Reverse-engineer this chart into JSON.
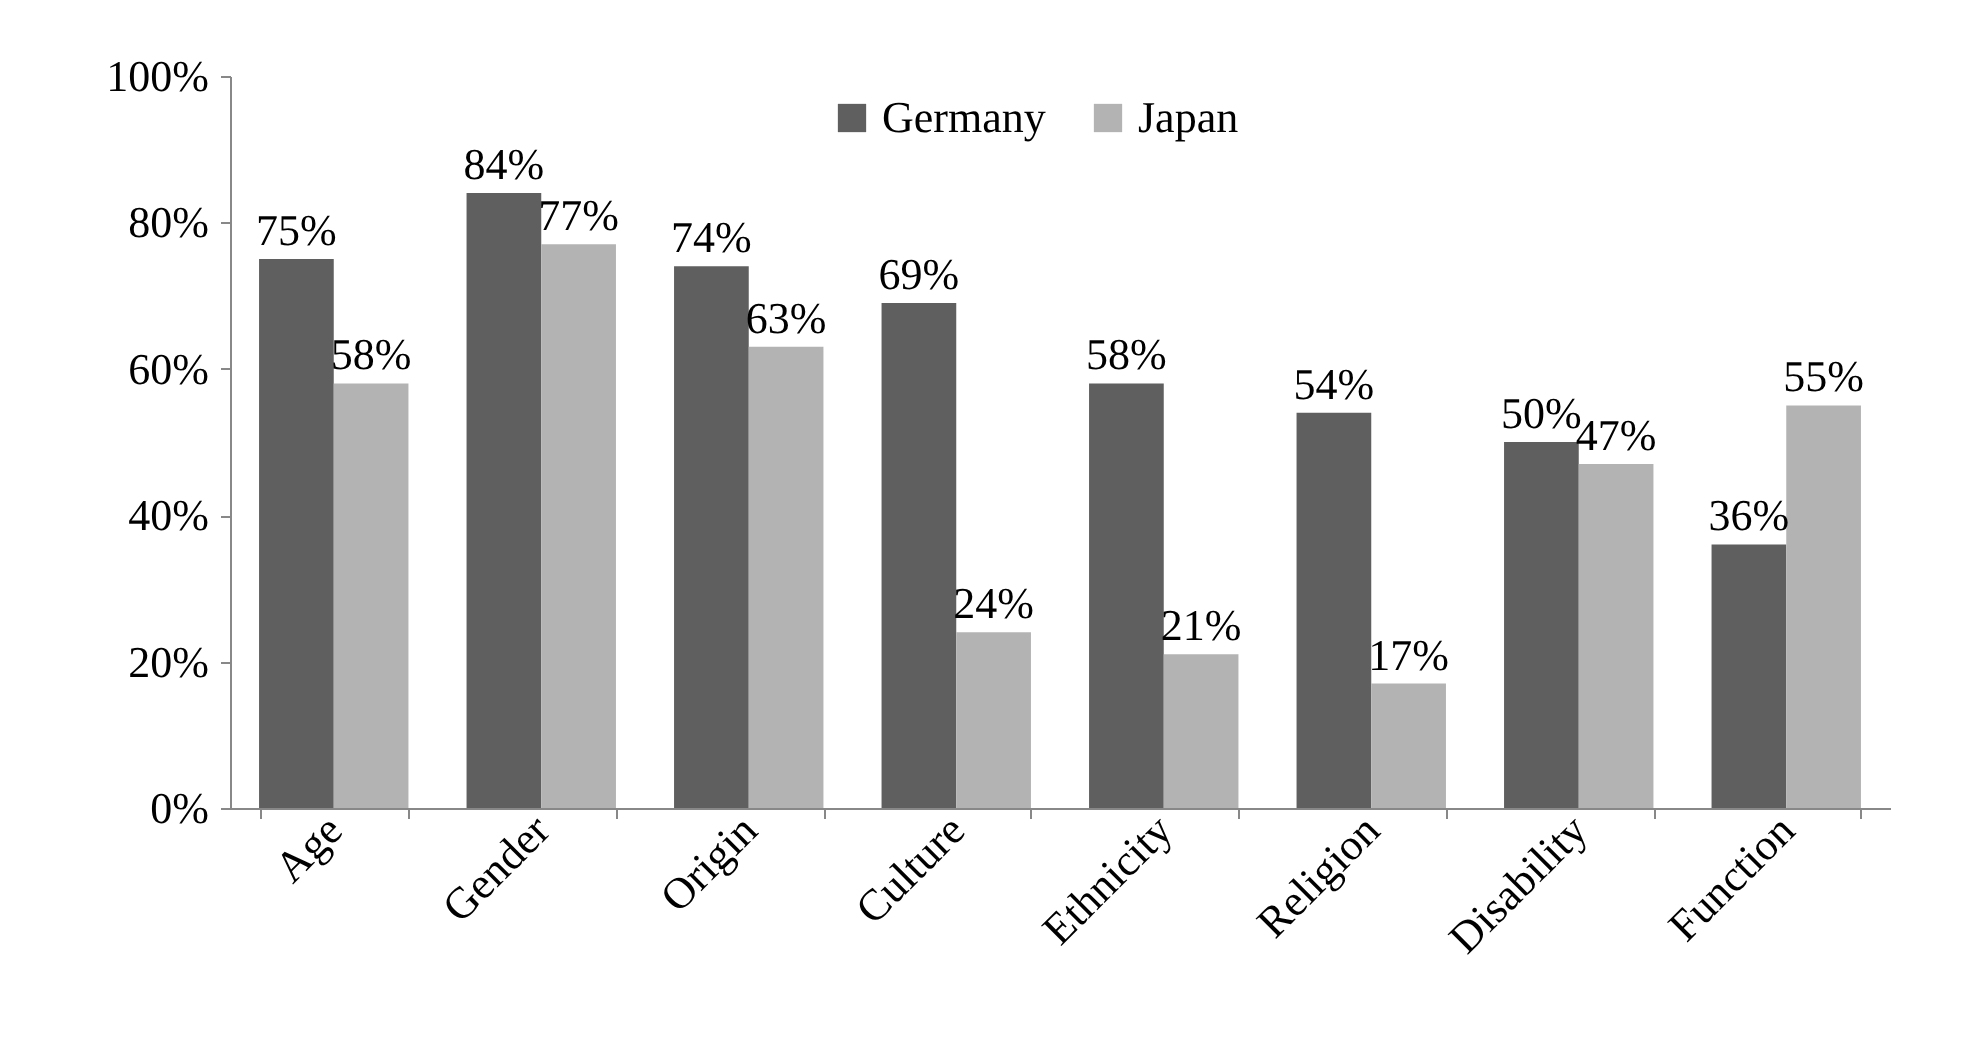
{
  "chart_data": {
    "type": "bar",
    "categories": [
      "Age",
      "Gender",
      "Origin",
      "Culture",
      "Ethnicity",
      "Religion",
      "Disability",
      "Function"
    ],
    "series": [
      {
        "name": "Germany",
        "color": "#5f5f5f",
        "values": [
          75,
          84,
          74,
          69,
          58,
          54,
          50,
          36
        ],
        "value_labels": [
          "75%",
          "84%",
          "74%",
          "69%",
          "58%",
          "54%",
          "50%",
          "36%"
        ]
      },
      {
        "name": "Japan",
        "color": "#b3b3b3",
        "values": [
          58,
          77,
          63,
          24,
          21,
          17,
          47,
          55
        ],
        "value_labels": [
          "58%",
          "77%",
          "63%",
          "24%",
          "21%",
          "17%",
          "47%",
          "55%"
        ]
      }
    ],
    "ylim": [
      0,
      100
    ],
    "yticks": [
      {
        "value": 0,
        "label": "0%"
      },
      {
        "value": 20,
        "label": "20%"
      },
      {
        "value": 40,
        "label": "40%"
      },
      {
        "value": 60,
        "label": "60%"
      },
      {
        "value": 80,
        "label": "80%"
      },
      {
        "value": 100,
        "label": "100%"
      }
    ],
    "grid": false,
    "legend": "top"
  }
}
